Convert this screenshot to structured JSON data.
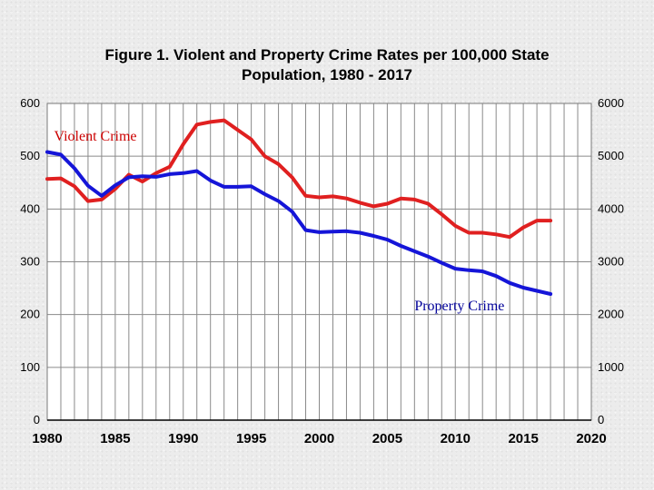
{
  "chart_data": {
    "type": "line",
    "title_line1": "Figure 1. Violent and Property Crime Rates per 100,000 State",
    "title_line2": "Population, 1980 - 2017",
    "x_ticks": [
      1980,
      1985,
      1990,
      1995,
      2000,
      2005,
      2010,
      2015,
      2020
    ],
    "xlim": [
      1980,
      2020
    ],
    "ylim_left": [
      0,
      600
    ],
    "ylim_right": [
      0,
      6000
    ],
    "y_ticks_left": [
      0,
      100,
      200,
      300,
      400,
      500,
      600
    ],
    "y_ticks_right": [
      0,
      1000,
      2000,
      3000,
      4000,
      5000,
      6000
    ],
    "grid": "vertical yearly, horizontal at ticks",
    "series": [
      {
        "name": "Violent Crime",
        "axis": "left",
        "color": "#e02020",
        "x": [
          1980,
          1981,
          1982,
          1983,
          1984,
          1985,
          1986,
          1987,
          1988,
          1989,
          1990,
          1991,
          1992,
          1993,
          1994,
          1995,
          1996,
          1997,
          1998,
          1999,
          2000,
          2001,
          2002,
          2003,
          2004,
          2005,
          2006,
          2007,
          2008,
          2009,
          2010,
          2011,
          2012,
          2013,
          2014,
          2015,
          2016,
          2017
        ],
        "values": [
          457,
          458,
          443,
          415,
          418,
          438,
          465,
          452,
          468,
          480,
          523,
          560,
          565,
          568,
          550,
          532,
          500,
          485,
          460,
          425,
          422,
          424,
          420,
          412,
          405,
          410,
          420,
          418,
          410,
          390,
          368,
          355,
          355,
          352,
          347,
          365,
          378,
          378
        ]
      },
      {
        "name": "Property Crime",
        "axis": "right",
        "color": "#1515d8",
        "x": [
          1980,
          1981,
          1982,
          1983,
          1984,
          1985,
          1986,
          1987,
          1988,
          1989,
          1990,
          1991,
          1992,
          1993,
          1994,
          1995,
          1996,
          1997,
          1998,
          1999,
          2000,
          2001,
          2002,
          2003,
          2004,
          2005,
          2006,
          2007,
          2008,
          2009,
          2010,
          2011,
          2012,
          2013,
          2014,
          2015,
          2016,
          2017
        ],
        "values": [
          5080,
          5030,
          4770,
          4440,
          4250,
          4450,
          4600,
          4620,
          4610,
          4660,
          4680,
          4720,
          4540,
          4420,
          4420,
          4430,
          4280,
          4150,
          3950,
          3600,
          3560,
          3570,
          3580,
          3550,
          3490,
          3420,
          3300,
          3200,
          3100,
          2980,
          2870,
          2840,
          2820,
          2730,
          2600,
          2510,
          2450,
          2390
        ]
      }
    ],
    "annotations": [
      {
        "text": "Violent Crime",
        "color": "#cc0000",
        "x": 1980.5,
        "y_left": 540
      },
      {
        "text": "Property Crime",
        "color": "#000099",
        "x": 2007,
        "y_left": 218
      }
    ]
  }
}
